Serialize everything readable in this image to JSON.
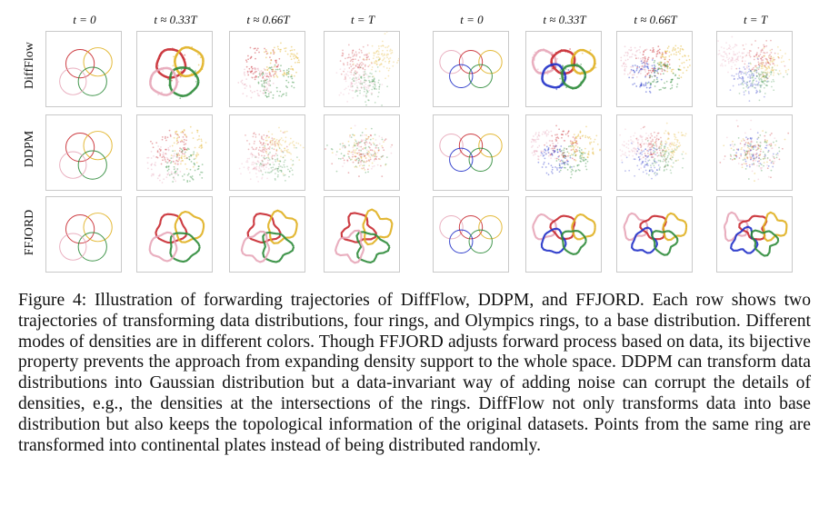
{
  "figure": {
    "column_labels_left": [
      "t = 0",
      "t ≈ 0.33T",
      "t ≈ 0.66T",
      "t = T"
    ],
    "column_labels_right": [
      "t = 0",
      "t ≈ 0.33T",
      "t ≈ 0.66T",
      "t = T"
    ],
    "row_labels": [
      "DiffFlow",
      "DDPM",
      "FFJORD"
    ],
    "ring_colors": [
      "#c8282f",
      "#e0b020",
      "#2e8b3a",
      "#e7a6b8",
      "#2030c8"
    ],
    "panel_types": {
      "left_dataset": "four-rings",
      "right_dataset": "olympic-rings"
    }
  },
  "caption": {
    "text": "Figure 4: Illustration of forwarding trajectories of DiffFlow, DDPM, and FFJORD. Each row shows two trajectories of transforming data distributions, four rings, and Olympics rings, to a base distribution. Different modes of densities are in different colors. Though FFJORD adjusts forward process based on data, its bijective property prevents the approach from expanding density support to the whole space. DDPM can transform data distributions into Gaussian distribution but a data-invariant way of adding noise can corrupt the details of densities, e.g., the densities at the intersections of the rings. DiffFlow not only transforms data into base distribution but also keeps the topological information of the original datasets. Points from the same ring are transformed into continental plates instead of being distributed randomly."
  }
}
